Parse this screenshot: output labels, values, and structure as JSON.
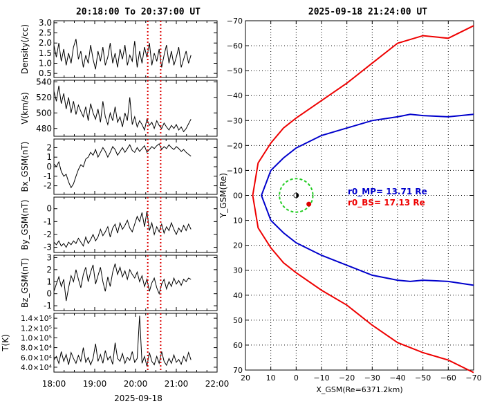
{
  "left_title": "20:18:00  To  20:37:00  UT",
  "right_title": "2025-09-18  21:24:00 UT",
  "date_label": "2025-09-18",
  "x_tick_labels": [
    "18:00",
    "19:00",
    "20:00",
    "21:00",
    "22:00"
  ],
  "annotations": [
    {
      "text": "r0_MP= 13.71 Re",
      "color": "#0000cc"
    },
    {
      "text": "r0_BS= 17.13 Re",
      "color": "#ee0000"
    }
  ],
  "colors": {
    "trace": "#000000",
    "marker": "#dd0000",
    "magnetopause": "#0000cc",
    "bow_shock": "#ee0000",
    "circle": "#22cc22"
  },
  "chart_data": [
    {
      "type": "line",
      "ylabel": "Density(/cc)",
      "xlim": [
        18.0,
        22.0
      ],
      "ylim": [
        0.3,
        3.1
      ],
      "yticks": [
        0.5,
        1.0,
        1.5,
        2.0,
        2.5,
        3.0
      ],
      "ytick_labels": [
        "0.5",
        "1.0",
        "1.5",
        "2.0",
        "2.5",
        "3.0"
      ],
      "vlines": [
        20.3,
        20.617
      ],
      "series": [
        {
          "x": [
            18.0,
            18.06,
            18.12,
            18.18,
            18.24,
            18.3,
            18.36,
            18.42,
            18.48,
            18.54,
            18.6,
            18.66,
            18.72,
            18.78,
            18.84,
            18.9,
            18.96,
            19.02,
            19.08,
            19.14,
            19.2,
            19.26,
            19.32,
            19.38,
            19.44,
            19.5,
            19.56,
            19.62,
            19.68,
            19.74,
            19.8,
            19.86,
            19.92,
            19.98,
            20.04,
            20.1,
            20.16,
            20.22,
            20.28,
            20.34,
            20.4,
            20.46,
            20.52,
            20.58,
            20.64,
            20.7,
            20.76,
            20.82,
            20.88,
            20.94,
            21.0,
            21.06,
            21.12,
            21.18,
            21.24,
            21.3,
            21.36
          ],
          "values": [
            1.9,
            1.3,
            2.0,
            1.1,
            1.7,
            0.9,
            1.5,
            1.0,
            1.8,
            2.2,
            1.2,
            1.6,
            0.8,
            1.4,
            1.0,
            1.9,
            1.2,
            0.7,
            1.6,
            1.1,
            1.8,
            0.9,
            1.3,
            2.0,
            1.0,
            1.5,
            0.8,
            1.7,
            1.2,
            1.9,
            0.9,
            1.4,
            1.1,
            2.1,
            0.8,
            1.6,
            1.0,
            1.8,
            1.3,
            2.0,
            0.9,
            1.5,
            1.1,
            1.7,
            0.8,
            1.4,
            1.9,
            1.0,
            1.6,
            0.9,
            1.3,
            1.8,
            0.8,
            1.2,
            1.6,
            1.0,
            1.4
          ]
        }
      ]
    },
    {
      "type": "line",
      "ylabel": "V(km/s)",
      "xlim": [
        18.0,
        22.0
      ],
      "ylim": [
        470,
        542
      ],
      "yticks": [
        480,
        500,
        520,
        540
      ],
      "ytick_labels": [
        "480",
        "500",
        "520",
        "540"
      ],
      "vlines": [
        20.3,
        20.617
      ],
      "series": [
        {
          "x": [
            18.0,
            18.06,
            18.12,
            18.18,
            18.24,
            18.3,
            18.36,
            18.42,
            18.48,
            18.54,
            18.6,
            18.66,
            18.72,
            18.78,
            18.84,
            18.9,
            18.96,
            19.02,
            19.08,
            19.14,
            19.2,
            19.26,
            19.32,
            19.38,
            19.44,
            19.5,
            19.56,
            19.62,
            19.68,
            19.74,
            19.8,
            19.86,
            19.92,
            19.98,
            20.04,
            20.1,
            20.16,
            20.22,
            20.28,
            20.34,
            20.4,
            20.46,
            20.52,
            20.58,
            20.64,
            20.7,
            20.76,
            20.82,
            20.88,
            20.94,
            21.0,
            21.06,
            21.12,
            21.18,
            21.24,
            21.3,
            21.36
          ],
          "values": [
            528,
            515,
            535,
            512,
            525,
            505,
            520,
            500,
            515,
            498,
            510,
            502,
            495,
            508,
            490,
            512,
            500,
            492,
            505,
            488,
            515,
            495,
            485,
            500,
            490,
            508,
            488,
            495,
            482,
            500,
            490,
            520,
            485,
            495,
            482,
            490,
            485,
            478,
            492,
            484,
            488,
            480,
            490,
            484,
            480,
            487,
            482,
            478,
            484,
            480,
            485,
            478,
            482,
            476,
            480,
            486,
            492
          ]
        }
      ]
    },
    {
      "type": "line",
      "ylabel": "Bx_GSM(nT)",
      "xlim": [
        18.0,
        22.0
      ],
      "ylim": [
        -2.9,
        2.9
      ],
      "yticks": [
        -2,
        -1,
        0,
        1,
        2
      ],
      "ytick_labels": [
        "-2",
        "-1",
        "0",
        "1",
        "2"
      ],
      "vlines": [
        20.3,
        20.617
      ],
      "series": [
        {
          "x": [
            18.0,
            18.06,
            18.12,
            18.18,
            18.24,
            18.3,
            18.36,
            18.42,
            18.48,
            18.54,
            18.6,
            18.66,
            18.72,
            18.78,
            18.84,
            18.9,
            18.96,
            19.02,
            19.08,
            19.14,
            19.2,
            19.26,
            19.32,
            19.38,
            19.44,
            19.5,
            19.56,
            19.62,
            19.68,
            19.74,
            19.8,
            19.86,
            19.92,
            19.98,
            20.04,
            20.1,
            20.16,
            20.22,
            20.28,
            20.34,
            20.4,
            20.46,
            20.52,
            20.58,
            20.64,
            20.7,
            20.76,
            20.82,
            20.88,
            20.94,
            21.0,
            21.06,
            21.12,
            21.18,
            21.24,
            21.3,
            21.36
          ],
          "values": [
            0.3,
            0.0,
            0.5,
            -0.5,
            -1.0,
            -0.8,
            -1.6,
            -2.2,
            -1.8,
            -1.0,
            -0.3,
            0.2,
            0.0,
            0.8,
            1.0,
            1.5,
            1.2,
            1.8,
            1.0,
            1.5,
            2.0,
            1.6,
            1.0,
            1.5,
            2.1,
            1.8,
            1.2,
            1.6,
            2.0,
            1.5,
            1.9,
            2.3,
            1.7,
            1.5,
            2.0,
            1.6,
            1.9,
            2.2,
            1.5,
            1.8,
            2.1,
            1.9,
            2.2,
            2.4,
            1.8,
            2.1,
            1.9,
            2.3,
            2.0,
            1.8,
            2.1,
            1.9,
            1.6,
            1.8,
            1.5,
            1.3,
            1.1
          ]
        }
      ]
    },
    {
      "type": "line",
      "ylabel": "By_GSM(nT)",
      "xlim": [
        18.0,
        22.0
      ],
      "ylim": [
        -3.4,
        0.9
      ],
      "yticks": [
        -3,
        -2,
        -1,
        0
      ],
      "ytick_labels": [
        "-3",
        "-2",
        "-1",
        "0"
      ],
      "vlines": [
        20.3,
        20.617
      ],
      "series": [
        {
          "x": [
            18.0,
            18.06,
            18.12,
            18.18,
            18.24,
            18.3,
            18.36,
            18.42,
            18.48,
            18.54,
            18.6,
            18.66,
            18.72,
            18.78,
            18.84,
            18.9,
            18.96,
            19.02,
            19.08,
            19.14,
            19.2,
            19.26,
            19.32,
            19.38,
            19.44,
            19.5,
            19.56,
            19.62,
            19.68,
            19.74,
            19.8,
            19.86,
            19.92,
            19.98,
            20.04,
            20.1,
            20.16,
            20.22,
            20.28,
            20.34,
            20.4,
            20.46,
            20.52,
            20.58,
            20.64,
            20.7,
            20.76,
            20.82,
            20.88,
            20.94,
            21.0,
            21.06,
            21.12,
            21.18,
            21.24,
            21.3,
            21.36
          ],
          "values": [
            -2.6,
            -2.8,
            -2.5,
            -2.9,
            -2.7,
            -3.0,
            -2.6,
            -2.8,
            -2.5,
            -2.7,
            -2.3,
            -2.6,
            -2.9,
            -2.2,
            -2.7,
            -2.4,
            -2.0,
            -2.5,
            -2.2,
            -1.6,
            -2.1,
            -1.8,
            -1.4,
            -2.2,
            -1.5,
            -1.2,
            -1.9,
            -1.1,
            -1.6,
            -1.3,
            -0.9,
            -1.5,
            -1.8,
            -1.2,
            -0.6,
            -1.0,
            -0.3,
            -1.4,
            -0.2,
            -1.7,
            -1.1,
            -2.0,
            -1.4,
            -1.8,
            -1.2,
            -1.9,
            -1.4,
            -1.7,
            -1.1,
            -1.6,
            -2.0,
            -1.5,
            -1.8,
            -1.3,
            -1.7,
            -1.2,
            -1.6
          ]
        }
      ]
    },
    {
      "type": "line",
      "ylabel": "Bz_GSM(nT)",
      "xlim": [
        18.0,
        22.0
      ],
      "ylim": [
        -1.4,
        3.2
      ],
      "yticks": [
        -1,
        0,
        1,
        2,
        3
      ],
      "ytick_labels": [
        "-1",
        "0",
        "1",
        "2",
        "3"
      ],
      "vlines": [
        20.3,
        20.617
      ],
      "series": [
        {
          "x": [
            18.0,
            18.06,
            18.12,
            18.18,
            18.24,
            18.3,
            18.36,
            18.42,
            18.48,
            18.54,
            18.6,
            18.66,
            18.72,
            18.78,
            18.84,
            18.9,
            18.96,
            19.02,
            19.08,
            19.14,
            19.2,
            19.26,
            19.32,
            19.38,
            19.44,
            19.5,
            19.56,
            19.62,
            19.68,
            19.74,
            19.8,
            19.86,
            19.92,
            19.98,
            20.04,
            20.1,
            20.16,
            20.22,
            20.28,
            20.34,
            20.4,
            20.46,
            20.52,
            20.58,
            20.64,
            20.7,
            20.76,
            20.82,
            20.88,
            20.94,
            21.0,
            21.06,
            21.12,
            21.18,
            21.24,
            21.3,
            21.36
          ],
          "values": [
            0.2,
            0.8,
            1.4,
            0.6,
            1.2,
            -0.6,
            0.5,
            1.5,
            1.0,
            2.0,
            1.2,
            0.5,
            1.6,
            2.2,
            1.0,
            1.8,
            2.4,
            0.8,
            1.5,
            2.2,
            1.0,
            0.2,
            1.4,
            0.6,
            1.8,
            2.5,
            1.6,
            2.2,
            1.4,
            1.9,
            1.2,
            2.0,
            1.6,
            1.3,
            1.8,
            1.0,
            1.5,
            0.6,
            1.2,
            0.2,
            0.9,
            1.3,
            0.5,
            0.0,
            0.8,
            1.2,
            0.4,
            1.0,
            0.6,
            1.3,
            0.8,
            1.1,
            0.7,
            1.2,
            1.0,
            1.3,
            1.2
          ]
        }
      ]
    },
    {
      "type": "line",
      "ylabel": "T(K)",
      "xlim": [
        18.0,
        22.0
      ],
      "ylim": [
        30000,
        150000
      ],
      "yticks": [
        40000,
        60000,
        80000,
        100000,
        120000,
        140000
      ],
      "ytick_labels": [
        "4.0×10⁴",
        "6.0×10⁴",
        "8.0×10⁴",
        "1.0×10⁵",
        "1.2×10⁵",
        "1.4×10⁵"
      ],
      "vlines": [
        20.3,
        20.617
      ],
      "series": [
        {
          "x": [
            18.0,
            18.06,
            18.12,
            18.18,
            18.24,
            18.3,
            18.36,
            18.42,
            18.48,
            18.54,
            18.6,
            18.66,
            18.72,
            18.78,
            18.84,
            18.9,
            18.96,
            19.02,
            19.08,
            19.14,
            19.2,
            19.26,
            19.32,
            19.38,
            19.44,
            19.5,
            19.56,
            19.62,
            19.68,
            19.74,
            19.8,
            19.86,
            19.92,
            19.98,
            20.04,
            20.1,
            20.16,
            20.22,
            20.28,
            20.34,
            20.4,
            20.46,
            20.52,
            20.58,
            20.64,
            20.7,
            20.76,
            20.82,
            20.88,
            20.94,
            21.0,
            21.06,
            21.12,
            21.18,
            21.24,
            21.3,
            21.36
          ],
          "values": [
            55000,
            62000,
            48000,
            72000,
            52000,
            66000,
            45000,
            70000,
            58000,
            48000,
            64000,
            52000,
            80000,
            50000,
            60000,
            45000,
            58000,
            88000,
            52000,
            66000,
            48000,
            74000,
            55000,
            62000,
            46000,
            90000,
            58000,
            52000,
            68000,
            48000,
            60000,
            54000,
            72000,
            50000,
            58000,
            145000,
            48000,
            62000,
            42000,
            70000,
            52000,
            45000,
            62000,
            48000,
            72000,
            52000,
            44000,
            58000,
            48000,
            65000,
            50000,
            56000,
            46000,
            62000,
            52000,
            70000,
            55000
          ]
        }
      ]
    },
    {
      "type": "line",
      "xlabel": "X_GSM(Re=6371.2km)",
      "ylabel": "Y_GSM(Re)",
      "xlim": [
        20,
        -70
      ],
      "ylim": [
        -70,
        70
      ],
      "grid": true,
      "xticks": [
        20,
        10,
        0,
        -10,
        -20,
        -30,
        -40,
        -50,
        -60,
        -70
      ],
      "xtick_labels": [
        "20",
        "10",
        "0",
        "−10",
        "−20",
        "−30",
        "−40",
        "−50",
        "−60",
        "−70"
      ],
      "yticks": [
        -70,
        -60,
        -50,
        -40,
        -30,
        -20,
        -10,
        0,
        10,
        20,
        30,
        40,
        50,
        60,
        70
      ],
      "ytick_labels": [
        "−70",
        "−60",
        "−50",
        "−40",
        "−30",
        "−20",
        "−10",
        "00",
        "10",
        "20",
        "30",
        "40",
        "50",
        "60",
        "70"
      ],
      "series": [
        {
          "name": "r0_MP= 13.71 Re",
          "x": [
            -70,
            -60,
            -50,
            -45,
            -40,
            -30,
            -20,
            -10,
            0,
            5,
            10,
            13.71,
            10,
            5,
            0,
            -10,
            -20,
            -30,
            -40,
            -45,
            -50,
            -60,
            -70
          ],
          "y": [
            -32.5,
            -31.5,
            -32,
            -32.5,
            -31.5,
            -30,
            -27,
            -24,
            -19,
            -15,
            -10,
            0,
            10,
            15,
            19,
            24,
            28,
            32,
            34,
            34.5,
            34,
            34.5,
            36
          ]
        },
        {
          "name": "r0_BS= 17.13 Re",
          "x": [
            -70,
            -60,
            -50,
            -40,
            -30,
            -20,
            -10,
            0,
            5,
            10,
            15,
            17.13,
            15,
            10,
            5,
            0,
            -10,
            -20,
            -30,
            -40,
            -50,
            -60,
            -70
          ],
          "y": [
            -68,
            -63,
            -64,
            -61,
            -53,
            -45,
            -38,
            -31,
            -27,
            -21,
            -13,
            0,
            13,
            21,
            27,
            31,
            38,
            44,
            52,
            59,
            63,
            66,
            71
          ]
        }
      ],
      "earth": {
        "x": 0,
        "y": 0
      },
      "spacecraft": {
        "x": -5,
        "y": 3.5
      },
      "circle": {
        "x": 0,
        "y": 0,
        "r": 6.6
      }
    }
  ]
}
